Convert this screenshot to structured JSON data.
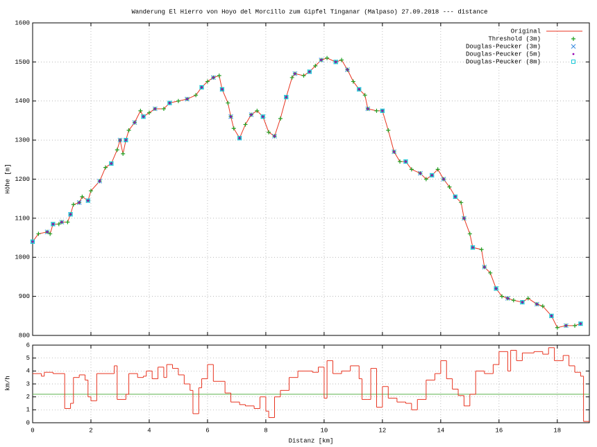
{
  "chart_data": [
    {
      "type": "line",
      "title": "Wanderung El Hierro von Hoyo del Morcillo zum Gipfel Tinganar (Malpaso) 27.09.2018 --- distance",
      "ylabel": "Höhe [m]",
      "xlim": [
        0,
        19.1
      ],
      "ylim": [
        800,
        1600
      ],
      "xticks": [
        0,
        2,
        4,
        6,
        8,
        10,
        12,
        14,
        16,
        18
      ],
      "yticks": [
        800,
        900,
        1000,
        1100,
        1200,
        1300,
        1400,
        1500,
        1600
      ],
      "grid": true,
      "legend": "top-right",
      "series": [
        {
          "name": "Original",
          "color": "#e8331f",
          "marker": "line",
          "x": [
            0,
            0.2,
            0.5,
            0.6,
            0.7,
            0.9,
            1.0,
            1.2,
            1.3,
            1.4,
            1.6,
            1.7,
            1.9,
            2.0,
            2.3,
            2.5,
            2.7,
            2.9,
            3.0,
            3.1,
            3.2,
            3.3,
            3.5,
            3.7,
            3.8,
            4.0,
            4.2,
            4.5,
            4.7,
            5.0,
            5.3,
            5.6,
            5.8,
            6.0,
            6.2,
            6.4,
            6.5,
            6.7,
            6.8,
            6.9,
            7.1,
            7.3,
            7.5,
            7.7,
            7.9,
            8.1,
            8.3,
            8.5,
            8.7,
            8.9,
            9.0,
            9.3,
            9.5,
            9.7,
            9.9,
            10.1,
            10.4,
            10.6,
            10.8,
            11.0,
            11.2,
            11.4,
            11.5,
            11.8,
            12.0,
            12.2,
            12.4,
            12.6,
            12.8,
            13.0,
            13.3,
            13.5,
            13.7,
            13.9,
            14.1,
            14.3,
            14.5,
            14.7,
            14.8,
            15.0,
            15.1,
            15.4,
            15.5,
            15.7,
            15.9,
            16.1,
            16.3,
            16.5,
            16.8,
            17.0,
            17.3,
            17.5,
            17.8,
            18.0,
            18.3,
            18.6,
            18.8
          ],
          "values": [
            1040,
            1060,
            1065,
            1060,
            1085,
            1085,
            1090,
            1090,
            1110,
            1135,
            1140,
            1155,
            1145,
            1170,
            1195,
            1230,
            1240,
            1275,
            1300,
            1265,
            1300,
            1325,
            1345,
            1375,
            1360,
            1370,
            1380,
            1380,
            1395,
            1400,
            1405,
            1415,
            1435,
            1450,
            1460,
            1465,
            1430,
            1395,
            1360,
            1330,
            1305,
            1340,
            1365,
            1375,
            1360,
            1320,
            1310,
            1355,
            1410,
            1460,
            1470,
            1465,
            1475,
            1490,
            1505,
            1510,
            1500,
            1505,
            1480,
            1450,
            1430,
            1415,
            1380,
            1375,
            1375,
            1325,
            1270,
            1245,
            1245,
            1225,
            1215,
            1200,
            1210,
            1225,
            1200,
            1180,
            1155,
            1140,
            1100,
            1060,
            1025,
            1020,
            975,
            960,
            920,
            900,
            895,
            890,
            885,
            895,
            880,
            875,
            850,
            820,
            825,
            825,
            830
          ]
        },
        {
          "name": "Threshold (3m)",
          "color": "#1f9e1f",
          "marker": "plus",
          "x": [
            0,
            0.2,
            0.5,
            0.6,
            0.7,
            0.9,
            1.0,
            1.2,
            1.3,
            1.4,
            1.6,
            1.7,
            1.9,
            2.0,
            2.3,
            2.5,
            2.7,
            2.9,
            3.0,
            3.1,
            3.2,
            3.3,
            3.5,
            3.7,
            3.8,
            4.0,
            4.2,
            4.5,
            4.7,
            5.0,
            5.3,
            5.6,
            5.8,
            6.0,
            6.2,
            6.4,
            6.5,
            6.7,
            6.8,
            6.9,
            7.1,
            7.3,
            7.5,
            7.7,
            7.9,
            8.1,
            8.3,
            8.5,
            8.7,
            8.9,
            9.0,
            9.3,
            9.5,
            9.7,
            9.9,
            10.1,
            10.4,
            10.6,
            10.8,
            11.0,
            11.2,
            11.4,
            11.5,
            11.8,
            12.0,
            12.2,
            12.4,
            12.6,
            12.8,
            13.0,
            13.3,
            13.5,
            13.7,
            13.9,
            14.1,
            14.3,
            14.5,
            14.7,
            14.8,
            15.0,
            15.1,
            15.4,
            15.5,
            15.7,
            15.9,
            16.1,
            16.3,
            16.5,
            16.8,
            17.0,
            17.3,
            17.5,
            17.8,
            18.0,
            18.3,
            18.6,
            18.8
          ],
          "values": [
            1040,
            1060,
            1065,
            1060,
            1085,
            1085,
            1090,
            1090,
            1110,
            1135,
            1140,
            1155,
            1145,
            1170,
            1195,
            1230,
            1240,
            1275,
            1300,
            1265,
            1300,
            1325,
            1345,
            1375,
            1360,
            1370,
            1380,
            1380,
            1395,
            1400,
            1405,
            1415,
            1435,
            1450,
            1460,
            1465,
            1430,
            1395,
            1360,
            1330,
            1305,
            1340,
            1365,
            1375,
            1360,
            1320,
            1310,
            1355,
            1410,
            1460,
            1470,
            1465,
            1475,
            1490,
            1505,
            1510,
            1500,
            1505,
            1480,
            1450,
            1430,
            1415,
            1380,
            1375,
            1375,
            1325,
            1270,
            1245,
            1245,
            1225,
            1215,
            1200,
            1210,
            1225,
            1200,
            1180,
            1155,
            1140,
            1100,
            1060,
            1025,
            1020,
            975,
            960,
            920,
            900,
            895,
            890,
            885,
            895,
            880,
            875,
            850,
            820,
            825,
            825,
            830
          ]
        },
        {
          "name": "Douglas-Peucker (3m)",
          "color": "#3d8fe0",
          "marker": "cross",
          "x": [
            0,
            0.5,
            0.7,
            1.0,
            1.3,
            1.6,
            1.9,
            2.3,
            2.7,
            3.0,
            3.2,
            3.5,
            3.8,
            4.2,
            4.7,
            5.3,
            5.8,
            6.2,
            6.5,
            6.8,
            7.1,
            7.5,
            7.9,
            8.3,
            8.7,
            9.0,
            9.5,
            9.9,
            10.4,
            10.8,
            11.2,
            11.5,
            12.0,
            12.4,
            12.8,
            13.3,
            13.7,
            14.1,
            14.5,
            14.8,
            15.1,
            15.5,
            15.9,
            16.3,
            16.8,
            17.3,
            17.8,
            18.3,
            18.8
          ],
          "values": [
            1040,
            1065,
            1085,
            1090,
            1110,
            1140,
            1145,
            1195,
            1240,
            1300,
            1300,
            1345,
            1360,
            1380,
            1395,
            1405,
            1435,
            1460,
            1430,
            1360,
            1305,
            1365,
            1360,
            1310,
            1410,
            1470,
            1475,
            1505,
            1500,
            1480,
            1430,
            1380,
            1375,
            1270,
            1245,
            1215,
            1210,
            1200,
            1155,
            1100,
            1025,
            975,
            920,
            895,
            885,
            880,
            850,
            825,
            830
          ]
        },
        {
          "name": "Douglas-Peucker (5m)",
          "color": "#9400b0",
          "marker": "dot",
          "x": [
            0,
            0.5,
            0.7,
            1.0,
            1.3,
            1.6,
            1.9,
            2.3,
            2.7,
            3.0,
            3.2,
            3.5,
            3.8,
            4.2,
            4.7,
            5.3,
            5.8,
            6.2,
            6.5,
            6.8,
            7.1,
            7.5,
            7.9,
            8.3,
            8.7,
            9.0,
            9.5,
            9.9,
            10.4,
            10.8,
            11.2,
            11.5,
            12.0,
            12.4,
            12.8,
            13.3,
            13.7,
            14.1,
            14.5,
            14.8,
            15.1,
            15.5,
            15.9,
            16.3,
            16.8,
            17.3,
            17.8,
            18.3,
            18.8
          ],
          "values": [
            1040,
            1065,
            1085,
            1090,
            1110,
            1140,
            1145,
            1195,
            1240,
            1300,
            1300,
            1345,
            1360,
            1380,
            1395,
            1405,
            1435,
            1460,
            1430,
            1360,
            1305,
            1365,
            1360,
            1310,
            1410,
            1470,
            1475,
            1505,
            1500,
            1480,
            1430,
            1380,
            1375,
            1270,
            1245,
            1215,
            1210,
            1200,
            1155,
            1100,
            1025,
            975,
            920,
            895,
            885,
            880,
            850,
            825,
            830
          ]
        },
        {
          "name": "Douglas-Peucker (8m)",
          "color": "#14c8d8",
          "marker": "square",
          "x": [
            0,
            0.7,
            1.3,
            1.9,
            2.7,
            3.2,
            3.8,
            4.7,
            5.8,
            6.5,
            7.1,
            7.9,
            8.7,
            9.5,
            10.4,
            11.2,
            12.0,
            12.8,
            13.7,
            14.5,
            15.1,
            15.9,
            16.8,
            17.8,
            18.8
          ],
          "values": [
            1040,
            1085,
            1110,
            1145,
            1240,
            1300,
            1360,
            1395,
            1435,
            1430,
            1305,
            1360,
            1410,
            1475,
            1500,
            1430,
            1375,
            1245,
            1210,
            1155,
            1025,
            920,
            885,
            850,
            830
          ]
        }
      ]
    },
    {
      "type": "step",
      "xlabel": "Distanz [km]",
      "ylabel": "km/h",
      "xlim": [
        0,
        19.1
      ],
      "ylim": [
        0,
        6
      ],
      "xticks": [
        0,
        2,
        4,
        6,
        8,
        10,
        12,
        14,
        16,
        18
      ],
      "yticks": [
        0,
        1,
        2,
        3,
        4,
        5,
        6
      ],
      "grid": true,
      "hline": 2.2,
      "hline_color": "#5ab04a",
      "color": "#e8331f",
      "x": [
        0,
        0.3,
        0.4,
        0.7,
        1.0,
        1.1,
        1.3,
        1.4,
        1.6,
        1.8,
        1.9,
        2.0,
        2.2,
        2.5,
        2.8,
        2.9,
        3.2,
        3.3,
        3.6,
        3.8,
        3.9,
        4.1,
        4.3,
        4.5,
        4.6,
        4.8,
        5.0,
        5.2,
        5.4,
        5.5,
        5.7,
        5.8,
        6.0,
        6.2,
        6.6,
        6.8,
        7.1,
        7.3,
        7.6,
        7.8,
        8.0,
        8.1,
        8.3,
        8.5,
        8.8,
        9.1,
        9.6,
        9.8,
        10.0,
        10.1,
        10.3,
        10.6,
        10.9,
        11.2,
        11.3,
        11.5,
        11.6,
        11.8,
        12.0,
        12.2,
        12.5,
        12.8,
        13.0,
        13.2,
        13.5,
        13.8,
        14.0,
        14.2,
        14.4,
        14.6,
        14.8,
        15.0,
        15.2,
        15.5,
        15.8,
        16.0,
        16.3,
        16.4,
        16.6,
        16.8,
        17.2,
        17.5,
        17.7,
        17.9,
        18.2,
        18.4,
        18.6,
        18.8,
        18.9
      ],
      "values": [
        3.8,
        3.6,
        3.9,
        3.8,
        3.8,
        1.1,
        1.5,
        3.5,
        3.7,
        3.3,
        2.0,
        1.7,
        3.8,
        3.8,
        4.4,
        1.8,
        2.2,
        3.8,
        3.5,
        3.6,
        4.0,
        3.4,
        4.3,
        3.5,
        4.5,
        4.2,
        3.7,
        3.0,
        2.5,
        0.7,
        2.7,
        3.4,
        4.5,
        3.2,
        2.3,
        1.6,
        1.4,
        1.3,
        1.1,
        2.0,
        0.9,
        0.4,
        2.0,
        2.5,
        3.5,
        4.0,
        3.9,
        4.3,
        1.9,
        4.8,
        3.8,
        4.0,
        4.4,
        3.4,
        1.8,
        1.8,
        4.2,
        1.2,
        2.8,
        1.9,
        1.6,
        1.5,
        1.0,
        1.8,
        3.3,
        3.8,
        4.8,
        3.4,
        2.6,
        2.1,
        1.3,
        2.2,
        4.0,
        3.8,
        4.5,
        5.5,
        4.0,
        5.6,
        4.8,
        5.4,
        5.5,
        5.3,
        5.8,
        4.8,
        5.2,
        4.4,
        3.9,
        3.6,
        0.1
      ]
    }
  ]
}
